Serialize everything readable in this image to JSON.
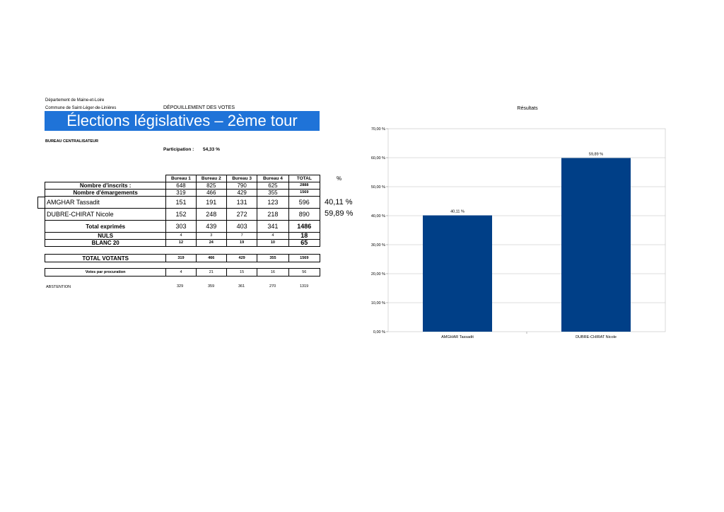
{
  "header": {
    "department": "Département de Maine-et-Loire",
    "commune": "Commune de Saint-Léger-de-Linières",
    "depouillement": "DÉPOUILLEMENT DES VOTES",
    "title": "Élections législatives – 2ème tour",
    "bureau": "BUREAU CENTRALISATEUR",
    "participation_label": "Participation :",
    "participation_value": "54,33 %"
  },
  "table": {
    "columns": [
      "Bureau 1",
      "Bureau 2",
      "Bureau 3",
      "Bureau 4",
      "TOTAL"
    ],
    "pct_header": "%",
    "rows": [
      {
        "label": "Nombre d'inscrits :",
        "values": [
          "648",
          "825",
          "790",
          "625",
          "2888"
        ]
      },
      {
        "label": "Nombre d'émargements",
        "values": [
          "319",
          "466",
          "429",
          "355",
          "1569"
        ]
      },
      {
        "label": "AMGHAR Tassadit",
        "values": [
          "151",
          "191",
          "131",
          "123",
          "596"
        ],
        "pct": "40,11 %"
      },
      {
        "label": "DUBRE-CHIRAT Nicole",
        "values": [
          "152",
          "248",
          "272",
          "218",
          "890"
        ],
        "pct": "59,89 %"
      },
      {
        "label": "Total exprimés",
        "values": [
          "303",
          "439",
          "403",
          "341",
          "1486"
        ]
      },
      {
        "label": "NULS",
        "values": [
          "4",
          "3",
          "7",
          "4",
          "18"
        ]
      },
      {
        "label": "BLANC 20",
        "values": [
          "12",
          "24",
          "19",
          "10",
          "65"
        ]
      }
    ],
    "votants": {
      "label": "TOTAL VOTANTS",
      "values": [
        "319",
        "466",
        "429",
        "355",
        "1569"
      ]
    },
    "procuration": {
      "label": "Votes par procuration",
      "values": [
        "4",
        "21",
        "15",
        "16",
        "56"
      ]
    },
    "abstention": {
      "label": "ABSTENTION",
      "values": [
        "329",
        "359",
        "361",
        "270",
        "1319"
      ]
    }
  },
  "chart_data": {
    "type": "bar",
    "title": "Résultats",
    "categories": [
      "AMGHAR Tassadit",
      "DUBRE-CHIRAT Nicole"
    ],
    "values": [
      40.11,
      59.89
    ],
    "data_labels": [
      "40,11 %",
      "59,89 %"
    ],
    "yticks": [
      "0,00 %",
      "10,00 %",
      "20,00 %",
      "30,00 %",
      "40,00 %",
      "50,00 %",
      "60,00 %",
      "70,00 %"
    ],
    "ylim": [
      0,
      70
    ],
    "grid": true,
    "bar_color": "#003f87",
    "legend": "none"
  }
}
